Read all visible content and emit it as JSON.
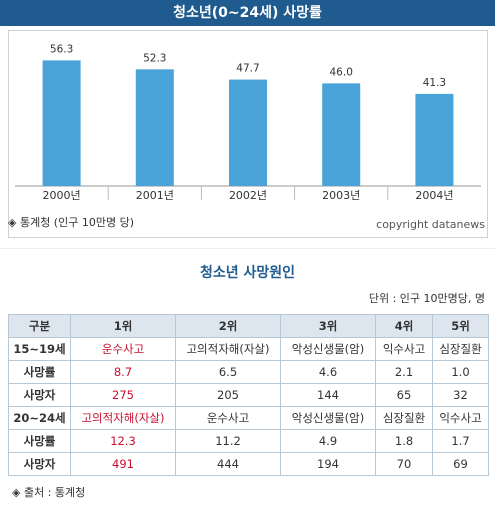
{
  "header": {
    "title": "청소년(0~24세) 사망률"
  },
  "chart_data": {
    "type": "bar",
    "categories": [
      "2000년",
      "2001년",
      "2002년",
      "2003년",
      "2004년"
    ],
    "values": [
      56.3,
      52.3,
      47.7,
      46.0,
      41.3
    ],
    "value_labels": [
      "56.3",
      "52.3",
      "47.7",
      "46.0",
      "41.3"
    ],
    "title": "청소년(0~24세) 사망률",
    "ylim": [
      0,
      65
    ],
    "bar_color": "#4aa3d8",
    "grid": false
  },
  "source": {
    "label": "◈ 통계청 (인구 10만명 당)",
    "copyright": "copyright datanews"
  },
  "table": {
    "title": "청소년 사망원인",
    "unit": "단위 : 인구 10만명당, 명",
    "headers": [
      "구분",
      "1위",
      "2위",
      "3위",
      "4위",
      "5위"
    ],
    "rows": [
      [
        "15~19세",
        "운수사고",
        "고의적자해(자살)",
        "악성신생물(암)",
        "익수사고",
        "심장질환"
      ],
      [
        "사망률",
        "8.7",
        "6.5",
        "4.6",
        "2.1",
        "1.0"
      ],
      [
        "사망자",
        "275",
        "205",
        "144",
        "65",
        "32"
      ],
      [
        "20~24세",
        "고의적자해(자살)",
        "운수사고",
        "악성신생물(암)",
        "심장질환",
        "익수사고"
      ],
      [
        "사망률",
        "12.3",
        "11.2",
        "4.9",
        "1.8",
        "1.7"
      ],
      [
        "사망자",
        "491",
        "444",
        "194",
        "70",
        "69"
      ]
    ]
  },
  "footer": {
    "label": "◈ 출처 : 통계청"
  },
  "colors": {
    "header_bg": "#1f5b8e",
    "accent_red": "#c8102e",
    "table_header_bg": "#dde6ef"
  }
}
